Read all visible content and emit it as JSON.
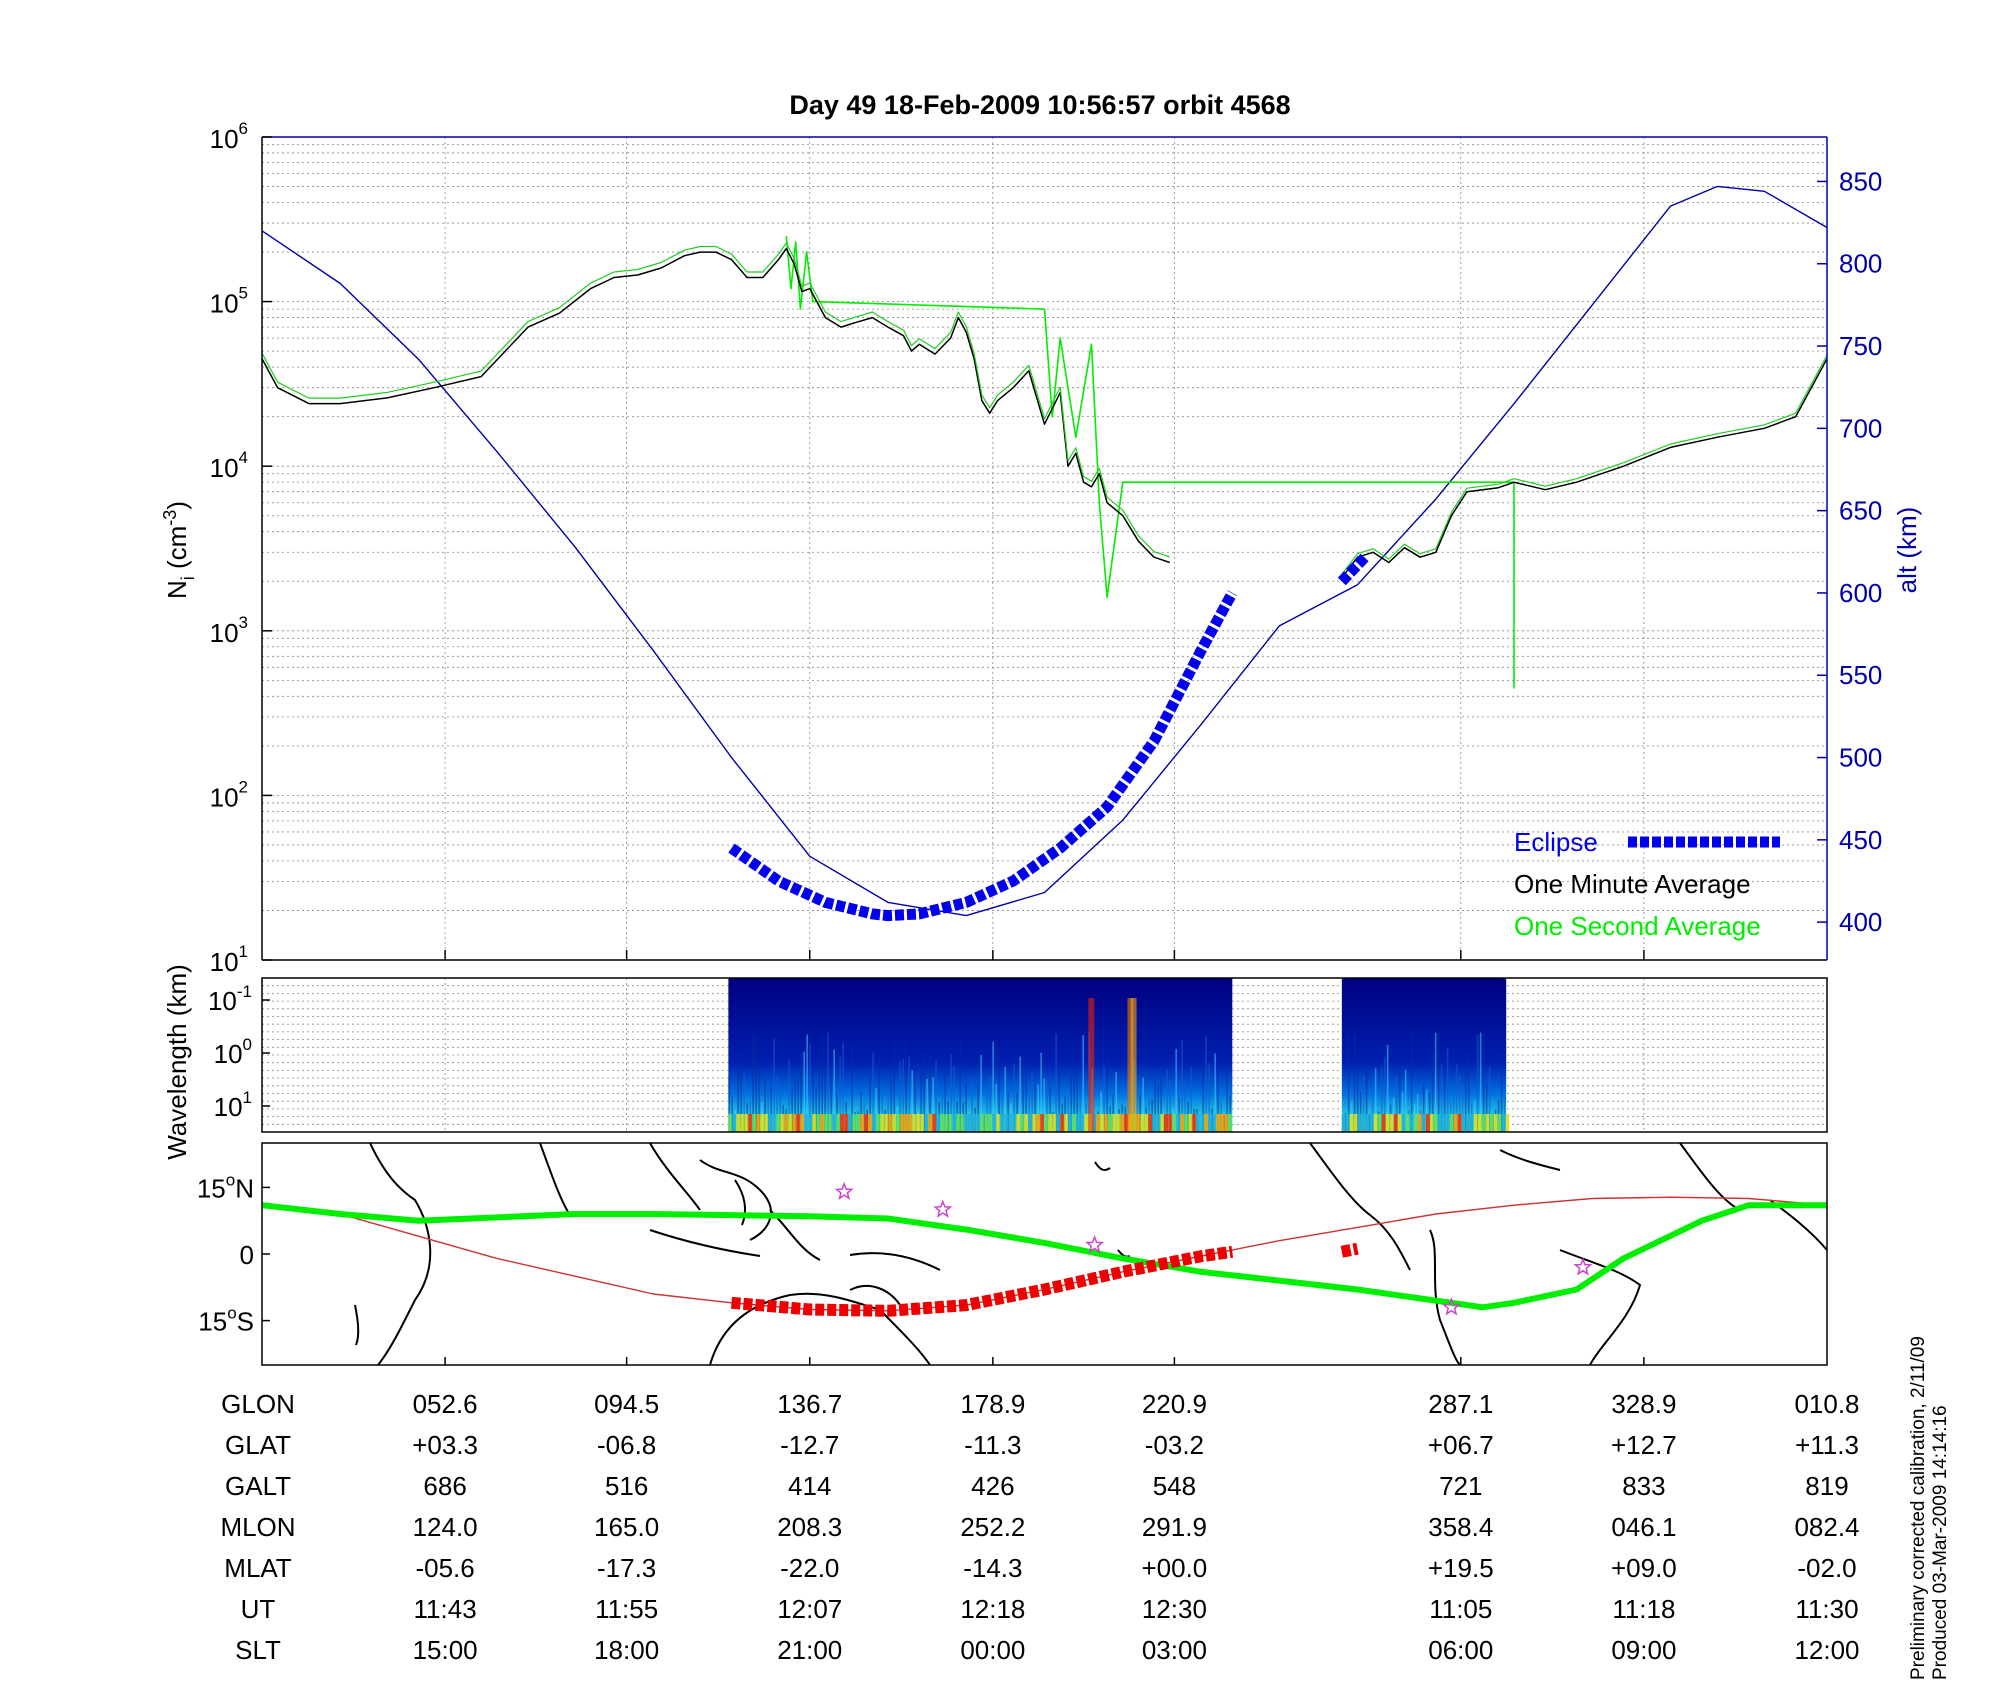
{
  "title": "Day 49  18-Feb-2009 10:56:57   orbit 4568",
  "chart_data": [
    {
      "type": "line",
      "title": "Day 49  18-Feb-2009 10:56:57   orbit 4568",
      "ylabel": "N_i (cm^-3)",
      "ylabel_main": "N",
      "ylabel_sub": "i",
      "ylabel_unit_open": " (cm",
      "ylabel_unit_exp": "-3",
      "ylabel_unit_close": ")",
      "yscale": "log",
      "ylim": [
        10,
        1000000
      ],
      "y_ticks": [
        {
          "base": "10",
          "exp": "1"
        },
        {
          "base": "10",
          "exp": "2"
        },
        {
          "base": "10",
          "exp": "3"
        },
        {
          "base": "10",
          "exp": "4"
        },
        {
          "base": "10",
          "exp": "5"
        },
        {
          "base": "10",
          "exp": "6"
        }
      ],
      "y2label": "alt (km)",
      "y2lim": [
        377,
        877
      ],
      "y2_ticks": [
        400,
        450,
        500,
        550,
        600,
        650,
        700,
        750,
        800,
        850
      ],
      "xlim": [
        0,
        1
      ],
      "x_gridlines": [
        0.117,
        0.233,
        0.35,
        0.467,
        0.583,
        0.766,
        0.883
      ],
      "grid": true,
      "legend_position": "bottom-right",
      "series": [
        {
          "name": "One Minute Average",
          "color": "#000000",
          "x": [
            0,
            0.01,
            0.03,
            0.05,
            0.08,
            0.11,
            0.14,
            0.17,
            0.19,
            0.21,
            0.225,
            0.24,
            0.255,
            0.27,
            0.28,
            0.29,
            0.3,
            0.31,
            0.32,
            0.33,
            0.335,
            0.34,
            0.345,
            0.35,
            0.36,
            0.37,
            0.38,
            0.39,
            0.4,
            0.41,
            0.415,
            0.42,
            0.43,
            0.44,
            0.445,
            0.45,
            0.455,
            0.46,
            0.465,
            0.47,
            0.48,
            0.49,
            0.5,
            0.51,
            0.515,
            0.52,
            0.525,
            0.53,
            0.535,
            0.54,
            0.55,
            0.56,
            0.57,
            0.575,
            0.58,
            0.59,
            0.6,
            0.62
          ],
          "y": [
            45000,
            30000,
            24000,
            24000,
            26000,
            30000,
            35000,
            70000,
            85000,
            120000,
            140000,
            145000,
            160000,
            190000,
            200000,
            200000,
            180000,
            140000,
            140000,
            180000,
            210000,
            170000,
            115000,
            120000,
            80000,
            70000,
            75000,
            80000,
            70000,
            62000,
            50000,
            55000,
            48000,
            60000,
            80000,
            65000,
            45000,
            25000,
            21000,
            25000,
            30000,
            38000,
            18000,
            28000,
            10000,
            12000,
            8000,
            7500,
            9000,
            6000,
            5000,
            3500,
            2800,
            2700,
            2600,
            null,
            null,
            null
          ]
        },
        {
          "name": "One Minute Average (second pass)",
          "color": "#000000",
          "x": [
            0.69,
            0.7,
            0.71,
            0.72,
            0.73,
            0.74,
            0.75,
            0.76,
            0.77,
            0.78,
            0.79,
            0.8,
            0.82,
            0.84,
            0.87,
            0.9,
            0.93,
            0.96,
            0.98,
            1.0
          ],
          "y": [
            2100,
            2800,
            3000,
            2600,
            3200,
            2800,
            3000,
            5000,
            7000,
            7200,
            7400,
            8000,
            7200,
            8000,
            10000,
            13000,
            15000,
            17000,
            20000,
            45000
          ]
        },
        {
          "name": "One Second Average",
          "color": "#00ee00",
          "x": [
            0.335,
            0.338,
            0.341,
            0.344,
            0.348,
            0.352,
            0.5,
            0.505,
            0.51,
            0.52,
            0.53,
            0.535,
            0.54,
            0.55,
            0.8,
            0.8,
            0.8
          ],
          "y": [
            250000,
            120000,
            230000,
            90000,
            200000,
            100000,
            90000,
            20000,
            60000,
            15000,
            55000,
            6000,
            1600,
            8000,
            8000,
            450,
            8000
          ]
        },
        {
          "name": "altitude",
          "color": "#0000aa",
          "axis": "y2",
          "x": [
            0,
            0.05,
            0.1,
            0.15,
            0.2,
            0.25,
            0.3,
            0.35,
            0.4,
            0.45,
            0.5,
            0.55,
            0.6,
            0.65,
            0.7,
            0.75,
            0.8,
            0.85,
            0.9,
            0.93,
            0.96,
            1.0
          ],
          "y": [
            820,
            788,
            742,
            686,
            628,
            565,
            500,
            440,
            412,
            404,
            418,
            462,
            520,
            580,
            605,
            657,
            715,
            775,
            835,
            847,
            844,
            822
          ]
        },
        {
          "name": "Eclipse",
          "color": "#0000ee",
          "axis": "y2",
          "x": [
            0.3,
            0.33,
            0.36,
            0.39,
            0.4,
            0.42,
            0.45,
            0.48,
            0.51,
            0.54,
            0.57,
            0.6,
            0.62
          ],
          "y": [
            445,
            425,
            412,
            405,
            404,
            405,
            412,
            425,
            445,
            470,
            510,
            565,
            600
          ],
          "marker": "square"
        },
        {
          "name": "Eclipse (second pass)",
          "color": "#0000ee",
          "axis": "y2",
          "x": [
            0.69,
            0.7,
            0.705
          ],
          "y": [
            607,
            617,
            622
          ],
          "marker": "square"
        }
      ],
      "legend": [
        {
          "label": "Eclipse",
          "color": "#0000ee"
        },
        {
          "label": "One Minute Average",
          "color": "#000000"
        },
        {
          "label": "One Second Average",
          "color": "#00ee00"
        }
      ]
    },
    {
      "type": "heatmap",
      "ylabel": "Wavelength (km)",
      "yscale": "log",
      "y_ticks": [
        {
          "base": "10",
          "exp": "-1"
        },
        {
          "base": "10",
          "exp": "0"
        },
        {
          "base": "10",
          "exp": "1"
        }
      ],
      "segments": [
        {
          "x_start": 0.298,
          "x_end": 0.62
        },
        {
          "x_start": 0.69,
          "x_end": 0.795
        }
      ],
      "background": "#00008f"
    },
    {
      "type": "line",
      "subtype": "map",
      "y_ticks": [
        {
          "value": "15",
          "unit": "N"
        },
        {
          "value": "0",
          "unit": ""
        },
        {
          "value": "15",
          "unit": "S"
        }
      ],
      "lat_range": [
        -25,
        25
      ],
      "series": [
        {
          "name": "magnetic equator",
          "color": "#00ee00",
          "x": [
            0,
            0.05,
            0.1,
            0.2,
            0.25,
            0.35,
            0.4,
            0.45,
            0.5,
            0.55,
            0.6,
            0.65,
            0.7,
            0.75,
            0.78,
            0.8,
            0.84,
            0.87,
            0.92,
            0.95,
            1.0
          ],
          "y": [
            11,
            9,
            7.5,
            9,
            9,
            8.5,
            8,
            5.5,
            2.5,
            -1,
            -4,
            -6,
            -8,
            -10.5,
            -12,
            -11,
            -8,
            -1,
            7.5,
            11,
            11
          ]
        },
        {
          "name": "orbit track",
          "color": "#cc3333",
          "x": [
            0,
            0.05,
            0.1,
            0.15,
            0.2,
            0.25,
            0.3,
            0.35,
            0.4,
            0.45,
            0.5,
            0.55,
            0.6,
            0.65,
            0.7,
            0.75,
            0.8,
            0.85,
            0.9,
            0.95,
            1.0
          ],
          "y": [
            11,
            9,
            4,
            -1,
            -5,
            -9,
            -11,
            -12.5,
            -12.8,
            -11.5,
            -8,
            -4,
            -0.5,
            3,
            6,
            9,
            11,
            12.5,
            12.8,
            12.5,
            11
          ]
        },
        {
          "name": "eclipse track",
          "color": "#ee0000",
          "x": [
            0.3,
            0.35,
            0.4,
            0.45,
            0.5,
            0.55,
            0.6,
            0.62
          ],
          "y": [
            -11,
            -12.5,
            -12.8,
            -11.5,
            -8,
            -4,
            -0.5,
            0.5
          ],
          "marker": "square"
        },
        {
          "name": "eclipse track (second pass)",
          "color": "#ee0000",
          "x": [
            0.69,
            0.7
          ],
          "y": [
            0.5,
            1.2
          ],
          "marker": "square"
        }
      ],
      "stars": [
        {
          "x": 0.372,
          "y": 14
        },
        {
          "x": 0.435,
          "y": 10
        },
        {
          "x": 0.532,
          "y": 2
        },
        {
          "x": 0.76,
          "y": -12
        },
        {
          "x": 0.844,
          "y": -3
        }
      ]
    }
  ],
  "table": {
    "column_x": [
      0.117,
      0.233,
      0.35,
      0.467,
      0.583,
      0.766,
      0.883,
      1.0
    ],
    "rows": [
      {
        "label": "GLON",
        "values": [
          "052.6",
          "094.5",
          "136.7",
          "178.9",
          "220.9",
          "287.1",
          "328.9",
          "010.8"
        ]
      },
      {
        "label": "GLAT",
        "values": [
          "+03.3",
          "-06.8",
          "-12.7",
          "-11.3",
          "-03.2",
          "+06.7",
          "+12.7",
          "+11.3"
        ]
      },
      {
        "label": "GALT",
        "values": [
          "686",
          "516",
          "414",
          "426",
          "548",
          "721",
          "833",
          "819"
        ]
      },
      {
        "label": "MLON",
        "values": [
          "124.0",
          "165.0",
          "208.3",
          "252.2",
          "291.9",
          "358.4",
          "046.1",
          "082.4"
        ]
      },
      {
        "label": "MLAT",
        "values": [
          "-05.6",
          "-17.3",
          "-22.0",
          "-14.3",
          "+00.0",
          "+19.5",
          "+09.0",
          "-02.0"
        ]
      },
      {
        "label": "UT",
        "values": [
          "11:43",
          "11:55",
          "12:07",
          "12:18",
          "12:30",
          "11:05",
          "11:18",
          "11:30"
        ]
      },
      {
        "label": "SLT",
        "values": [
          "15:00",
          "18:00",
          "21:00",
          "00:00",
          "03:00",
          "06:00",
          "09:00",
          "12:00"
        ]
      }
    ]
  },
  "footnote": {
    "line1": "Preliminary corrected calibration, 2/11/09",
    "line2": "Produced 03-Mar-2009 14:14:16"
  },
  "colors": {
    "altitude": "#0000aa",
    "eclipse": "#0000ee",
    "minute_avg": "#000000",
    "second_avg": "#00ee00",
    "map_track": "#ee0000",
    "star": "#cc44cc"
  }
}
